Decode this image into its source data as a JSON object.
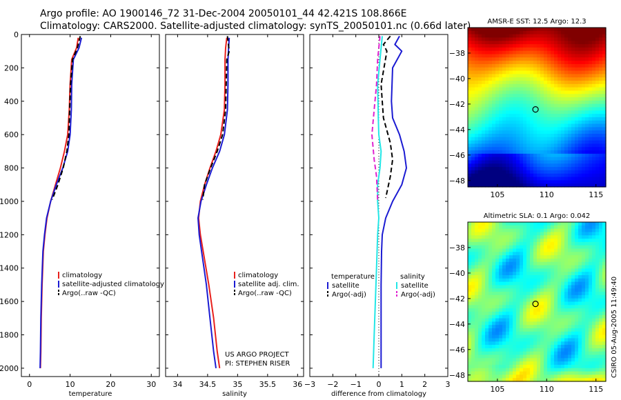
{
  "title": {
    "line1": "Argo profile: AO 1900146_72 31-Dec-2004 20050101_44 42.421S 108.866E",
    "line2": "Climatology: CARS2000. Satellite-adjusted climatology: synTS_20050101.nc (0.66d later)"
  },
  "side_stamp": "CSIRO 05-Aug-2005 11:49:40",
  "colors": {
    "climatology": "#e8201c",
    "satellite": "#1a1ad2",
    "argo": "#000000",
    "cyan": "#22e6e6",
    "magenta": "#e020d0"
  },
  "chart_data": [
    {
      "type": "line",
      "id": "temperature",
      "xlabel": "temperature",
      "xlim": [
        -2,
        32
      ],
      "ylim": [
        0,
        2050
      ],
      "yreversed": true,
      "xticks": [
        0,
        10,
        20,
        30
      ],
      "yticks": [
        0,
        200,
        400,
        600,
        800,
        1000,
        1200,
        1400,
        1600,
        1800,
        2000
      ],
      "series": [
        {
          "name": "climatology",
          "style": "solid",
          "color": "#e8201c",
          "x": [
            12.0,
            11.6,
            10.4,
            10.0,
            9.8,
            9.4,
            8.6,
            7.6,
            6.4,
            5.2,
            4.3,
            3.8,
            3.4,
            3.1,
            2.9,
            2.8,
            2.7
          ],
          "y": [
            20,
            80,
            150,
            300,
            450,
            600,
            700,
            800,
            900,
            1000,
            1100,
            1200,
            1300,
            1500,
            1700,
            1900,
            2000
          ]
        },
        {
          "name": "satellite-adjusted climatology",
          "style": "solid",
          "color": "#1a1ad2",
          "x": [
            12.8,
            12.2,
            10.8,
            10.4,
            10.3,
            10.0,
            9.4,
            8.2,
            6.6,
            5.2,
            4.2,
            3.7,
            3.3,
            3.0,
            2.8,
            2.7,
            2.6
          ],
          "y": [
            20,
            80,
            150,
            300,
            450,
            600,
            700,
            800,
            900,
            1000,
            1100,
            1200,
            1300,
            1500,
            1700,
            1900,
            2000
          ]
        },
        {
          "name": "Argo(..raw -QC)",
          "style": "dashed",
          "color": "#000000",
          "x": [
            12.5,
            11.8,
            10.6,
            10.1,
            9.9,
            9.7,
            9.2,
            8.3,
            7.0,
            5.6
          ],
          "y": [
            10,
            80,
            150,
            300,
            450,
            600,
            700,
            800,
            900,
            990
          ]
        }
      ],
      "legend": {
        "position": "lower-right",
        "entries": [
          "climatology",
          "satellite-adjusted climatology",
          "Argo(..raw -QC)"
        ]
      }
    },
    {
      "type": "line",
      "id": "salinity",
      "xlabel": "salinity",
      "xlim": [
        33.8,
        36.1
      ],
      "ylim": [
        0,
        2050
      ],
      "yreversed": true,
      "xticks": [
        34,
        34.5,
        35,
        35.5,
        36
      ],
      "yticks": [
        0,
        200,
        400,
        600,
        800,
        1000,
        1200,
        1400,
        1600,
        1800,
        2000
      ],
      "series": [
        {
          "name": "climatology",
          "style": "solid",
          "color": "#e8201c",
          "x": [
            34.82,
            34.8,
            34.79,
            34.79,
            34.78,
            34.72,
            34.64,
            34.54,
            34.45,
            34.38,
            34.35,
            34.38,
            34.45,
            34.52,
            34.6,
            34.66,
            34.7
          ],
          "y": [
            20,
            80,
            150,
            300,
            450,
            600,
            700,
            800,
            900,
            1000,
            1100,
            1200,
            1350,
            1500,
            1700,
            1900,
            2000
          ]
        },
        {
          "name": "satellite adj. clim.",
          "style": "solid",
          "color": "#1a1ad2",
          "x": [
            34.86,
            34.85,
            34.84,
            34.84,
            34.83,
            34.78,
            34.7,
            34.58,
            34.48,
            34.39,
            34.34,
            34.36,
            34.42,
            34.48,
            34.54,
            34.6,
            34.64
          ],
          "y": [
            20,
            80,
            150,
            300,
            450,
            600,
            700,
            800,
            900,
            1000,
            1100,
            1200,
            1350,
            1500,
            1700,
            1900,
            2000
          ]
        },
        {
          "name": "Argo(..raw -QC)",
          "style": "dashed",
          "color": "#000000",
          "x": [
            34.83,
            34.86,
            34.82,
            34.81,
            34.8,
            34.75,
            34.66,
            34.55,
            34.45,
            34.42
          ],
          "y": [
            10,
            100,
            150,
            300,
            450,
            600,
            700,
            800,
            900,
            990
          ]
        }
      ],
      "legend": {
        "position": "lower-right",
        "entries": [
          "climatology",
          "satellite adj. clim.",
          "Argo(..raw -QC)"
        ]
      },
      "annotation": [
        "US ARGO PROJECT",
        "PI: STEPHEN RISER"
      ]
    },
    {
      "type": "line",
      "id": "difference",
      "xlabel": "difference from climatology",
      "xlim": [
        -3,
        3
      ],
      "ylim": [
        0,
        2050
      ],
      "yreversed": true,
      "xticks": [
        -3,
        -2,
        -1,
        0,
        1,
        2,
        3
      ],
      "yticks": [
        0,
        200,
        400,
        600,
        800,
        1000,
        1200,
        1400,
        1600,
        1800,
        2000
      ],
      "series": [
        {
          "name": "temperature satellite",
          "style": "solid",
          "color": "#1a1ad2",
          "x": [
            0.9,
            0.7,
            1.0,
            0.6,
            0.55,
            0.6,
            0.9,
            1.1,
            1.2,
            1.0,
            0.6,
            0.3,
            0.15,
            0.12,
            0.1,
            0.1,
            0.1,
            0.1
          ],
          "y": [
            10,
            60,
            100,
            200,
            400,
            500,
            600,
            700,
            800,
            900,
            1000,
            1100,
            1200,
            1300,
            1500,
            1700,
            1900,
            2000
          ]
        },
        {
          "name": "temperature Argo(-adj)",
          "style": "dashed",
          "color": "#000000",
          "x": [
            0.5,
            0.2,
            0.35,
            0.1,
            0.2,
            0.5,
            0.6,
            0.5,
            0.3
          ],
          "y": [
            10,
            60,
            100,
            300,
            500,
            650,
            750,
            850,
            980
          ]
        },
        {
          "name": "salinity satellite",
          "style": "solid",
          "color": "#22e6e6",
          "x": [
            0.15,
            0.05,
            -0.05,
            -0.02,
            0.0,
            0.1,
            0.05,
            -0.05,
            -0.05,
            0.0,
            -0.05,
            -0.1,
            -0.15,
            -0.2,
            -0.25
          ],
          "y": [
            10,
            150,
            300,
            500,
            600,
            700,
            800,
            900,
            1000,
            1100,
            1200,
            1400,
            1600,
            1800,
            2000
          ]
        },
        {
          "name": "salinity Argo(-adj)",
          "style": "dashed",
          "color": "#e020d0",
          "x": [
            0.05,
            -0.05,
            -0.1,
            -0.2,
            -0.3,
            -0.2,
            -0.1,
            -0.05
          ],
          "y": [
            10,
            150,
            300,
            450,
            600,
            750,
            850,
            990
          ]
        }
      ],
      "legend": {
        "position": "lower-right",
        "temperature_header": "temperature",
        "salinity_header": "salinity",
        "entries": [
          "satellite",
          "Argo(-adj)",
          "satellite",
          "Argo(-adj)"
        ]
      }
    },
    {
      "type": "heatmap",
      "id": "sst_map",
      "title": "AMSR-E SST: 12.5 Argo: 12.3",
      "xlim": [
        102,
        116
      ],
      "ylim": [
        -48.5,
        -36
      ],
      "xticks": [
        105,
        110,
        115
      ],
      "yticks": [
        -38,
        -40,
        -42,
        -44,
        -46,
        -48
      ],
      "marker": {
        "x": 108.866,
        "y": -42.421
      },
      "colorscale": "jet",
      "pattern": "gradient",
      "value_range": [
        8,
        16
      ]
    },
    {
      "type": "heatmap",
      "id": "sla_map",
      "title": "Altimetric SLA: 0.1 Argo: 0.042",
      "xlim": [
        102,
        116
      ],
      "ylim": [
        -48.5,
        -36
      ],
      "xticks": [
        105,
        110,
        115
      ],
      "yticks": [
        -38,
        -40,
        -42,
        -44,
        -46,
        -48
      ],
      "marker": {
        "x": 108.866,
        "y": -42.421
      },
      "colorscale": "jet",
      "pattern": "eddies"
    }
  ]
}
